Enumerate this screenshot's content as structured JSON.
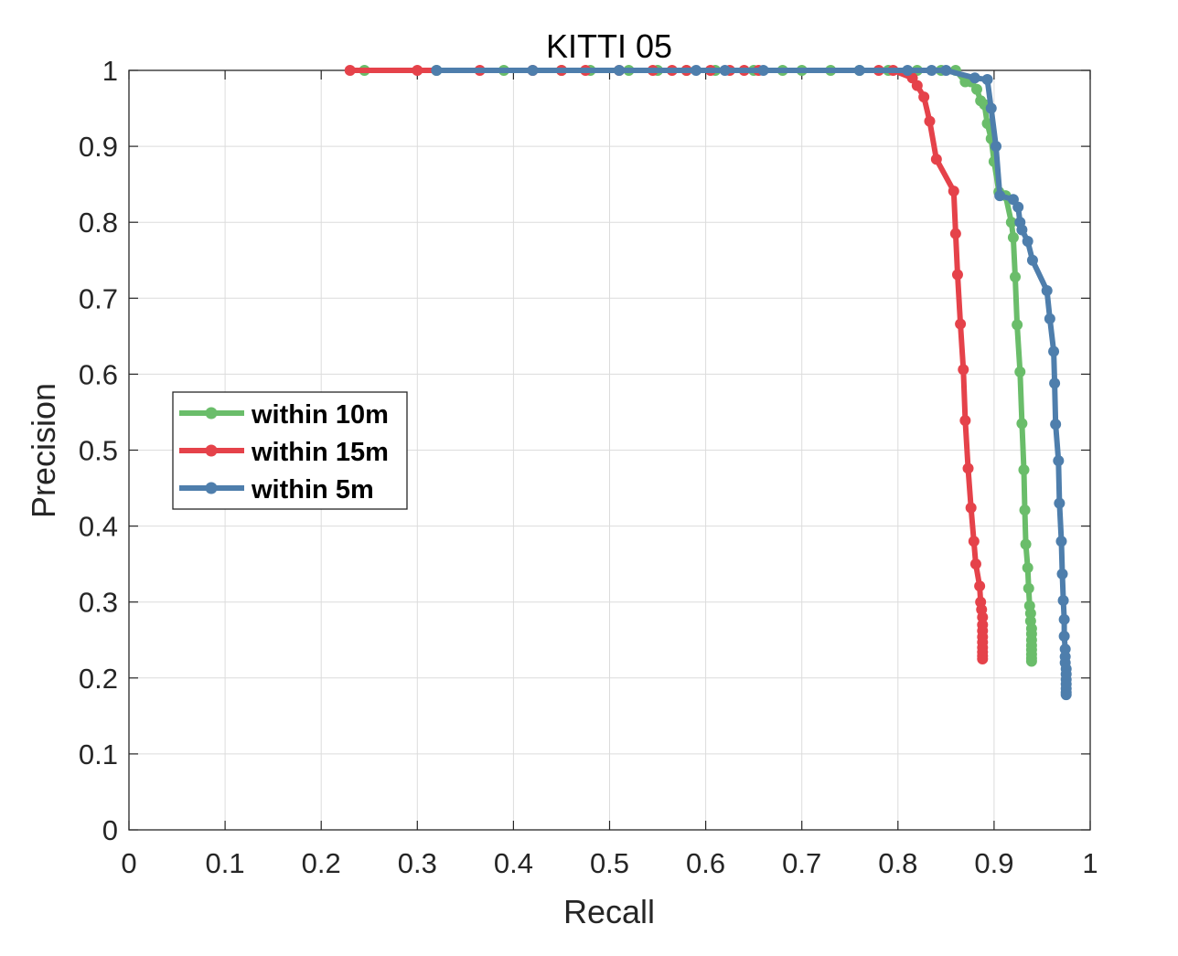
{
  "chart_data": {
    "type": "line",
    "title": "KITTI 05",
    "xlabel": "Recall",
    "ylabel": "Precision",
    "xlim": [
      0,
      1
    ],
    "ylim": [
      0,
      1
    ],
    "xticks": [
      "0",
      "0.1",
      "0.2",
      "0.3",
      "0.4",
      "0.5",
      "0.6",
      "0.7",
      "0.8",
      "0.9",
      "1"
    ],
    "yticks": [
      "0",
      "0.1",
      "0.2",
      "0.3",
      "0.4",
      "0.5",
      "0.6",
      "0.7",
      "0.8",
      "0.9",
      "1"
    ],
    "grid": true,
    "legend_position": "center-left",
    "series": [
      {
        "name": "within 10m",
        "color": "#6abd6a",
        "x": [
          0.245,
          0.32,
          0.39,
          0.45,
          0.48,
          0.52,
          0.55,
          0.58,
          0.61,
          0.65,
          0.68,
          0.7,
          0.73,
          0.76,
          0.79,
          0.82,
          0.845,
          0.86,
          0.87,
          0.876,
          0.882,
          0.886,
          0.89,
          0.893,
          0.897,
          0.9,
          0.905,
          0.912,
          0.918,
          0.92,
          0.922,
          0.924,
          0.927,
          0.929,
          0.931,
          0.932,
          0.933,
          0.935,
          0.936,
          0.937,
          0.938,
          0.938,
          0.939,
          0.939,
          0.939,
          0.939,
          0.939,
          0.939,
          0.939,
          0.939
        ],
        "y": [
          1.0,
          1.0,
          1.0,
          1.0,
          1.0,
          1.0,
          1.0,
          1.0,
          1.0,
          1.0,
          1.0,
          1.0,
          1.0,
          1.0,
          1.0,
          1.0,
          1.0,
          1.0,
          0.985,
          0.985,
          0.975,
          0.96,
          0.955,
          0.93,
          0.91,
          0.88,
          0.84,
          0.835,
          0.8,
          0.78,
          0.728,
          0.665,
          0.603,
          0.535,
          0.474,
          0.421,
          0.376,
          0.345,
          0.318,
          0.295,
          0.285,
          0.275,
          0.265,
          0.258,
          0.25,
          0.243,
          0.237,
          0.231,
          0.226,
          0.222
        ]
      },
      {
        "name": "within 15m",
        "color": "#e5424a",
        "x": [
          0.23,
          0.3,
          0.365,
          0.42,
          0.45,
          0.475,
          0.51,
          0.545,
          0.565,
          0.58,
          0.605,
          0.625,
          0.64,
          0.655,
          0.78,
          0.795,
          0.815,
          0.82,
          0.827,
          0.833,
          0.84,
          0.858,
          0.86,
          0.862,
          0.865,
          0.868,
          0.87,
          0.873,
          0.876,
          0.879,
          0.881,
          0.885,
          0.886,
          0.887,
          0.888,
          0.888,
          0.888,
          0.888,
          0.888,
          0.888,
          0.888,
          0.888,
          0.888
        ],
        "y": [
          1.0,
          1.0,
          1.0,
          1.0,
          1.0,
          1.0,
          1.0,
          1.0,
          1.0,
          1.0,
          1.0,
          1.0,
          1.0,
          1.0,
          1.0,
          1.0,
          0.99,
          0.98,
          0.965,
          0.933,
          0.883,
          0.841,
          0.785,
          0.731,
          0.666,
          0.606,
          0.539,
          0.476,
          0.424,
          0.38,
          0.35,
          0.321,
          0.3,
          0.29,
          0.28,
          0.27,
          0.262,
          0.254,
          0.247,
          0.24,
          0.234,
          0.229,
          0.225
        ]
      },
      {
        "name": "within 5m",
        "color": "#4e7eac",
        "x": [
          0.32,
          0.42,
          0.51,
          0.59,
          0.62,
          0.66,
          0.76,
          0.81,
          0.835,
          0.85,
          0.88,
          0.893,
          0.897,
          0.902,
          0.906,
          0.92,
          0.925,
          0.927,
          0.929,
          0.935,
          0.94,
          0.955,
          0.958,
          0.962,
          0.963,
          0.964,
          0.967,
          0.968,
          0.97,
          0.971,
          0.972,
          0.973,
          0.973,
          0.974,
          0.974,
          0.974,
          0.975,
          0.975,
          0.975,
          0.975,
          0.975,
          0.975,
          0.975
        ],
        "y": [
          1.0,
          1.0,
          1.0,
          1.0,
          1.0,
          1.0,
          1.0,
          1.0,
          1.0,
          1.0,
          0.99,
          0.988,
          0.95,
          0.9,
          0.835,
          0.83,
          0.82,
          0.8,
          0.79,
          0.775,
          0.75,
          0.71,
          0.673,
          0.63,
          0.588,
          0.534,
          0.486,
          0.43,
          0.38,
          0.337,
          0.302,
          0.277,
          0.255,
          0.238,
          0.228,
          0.22,
          0.212,
          0.205,
          0.198,
          0.192,
          0.186,
          0.181,
          0.178
        ]
      }
    ]
  }
}
